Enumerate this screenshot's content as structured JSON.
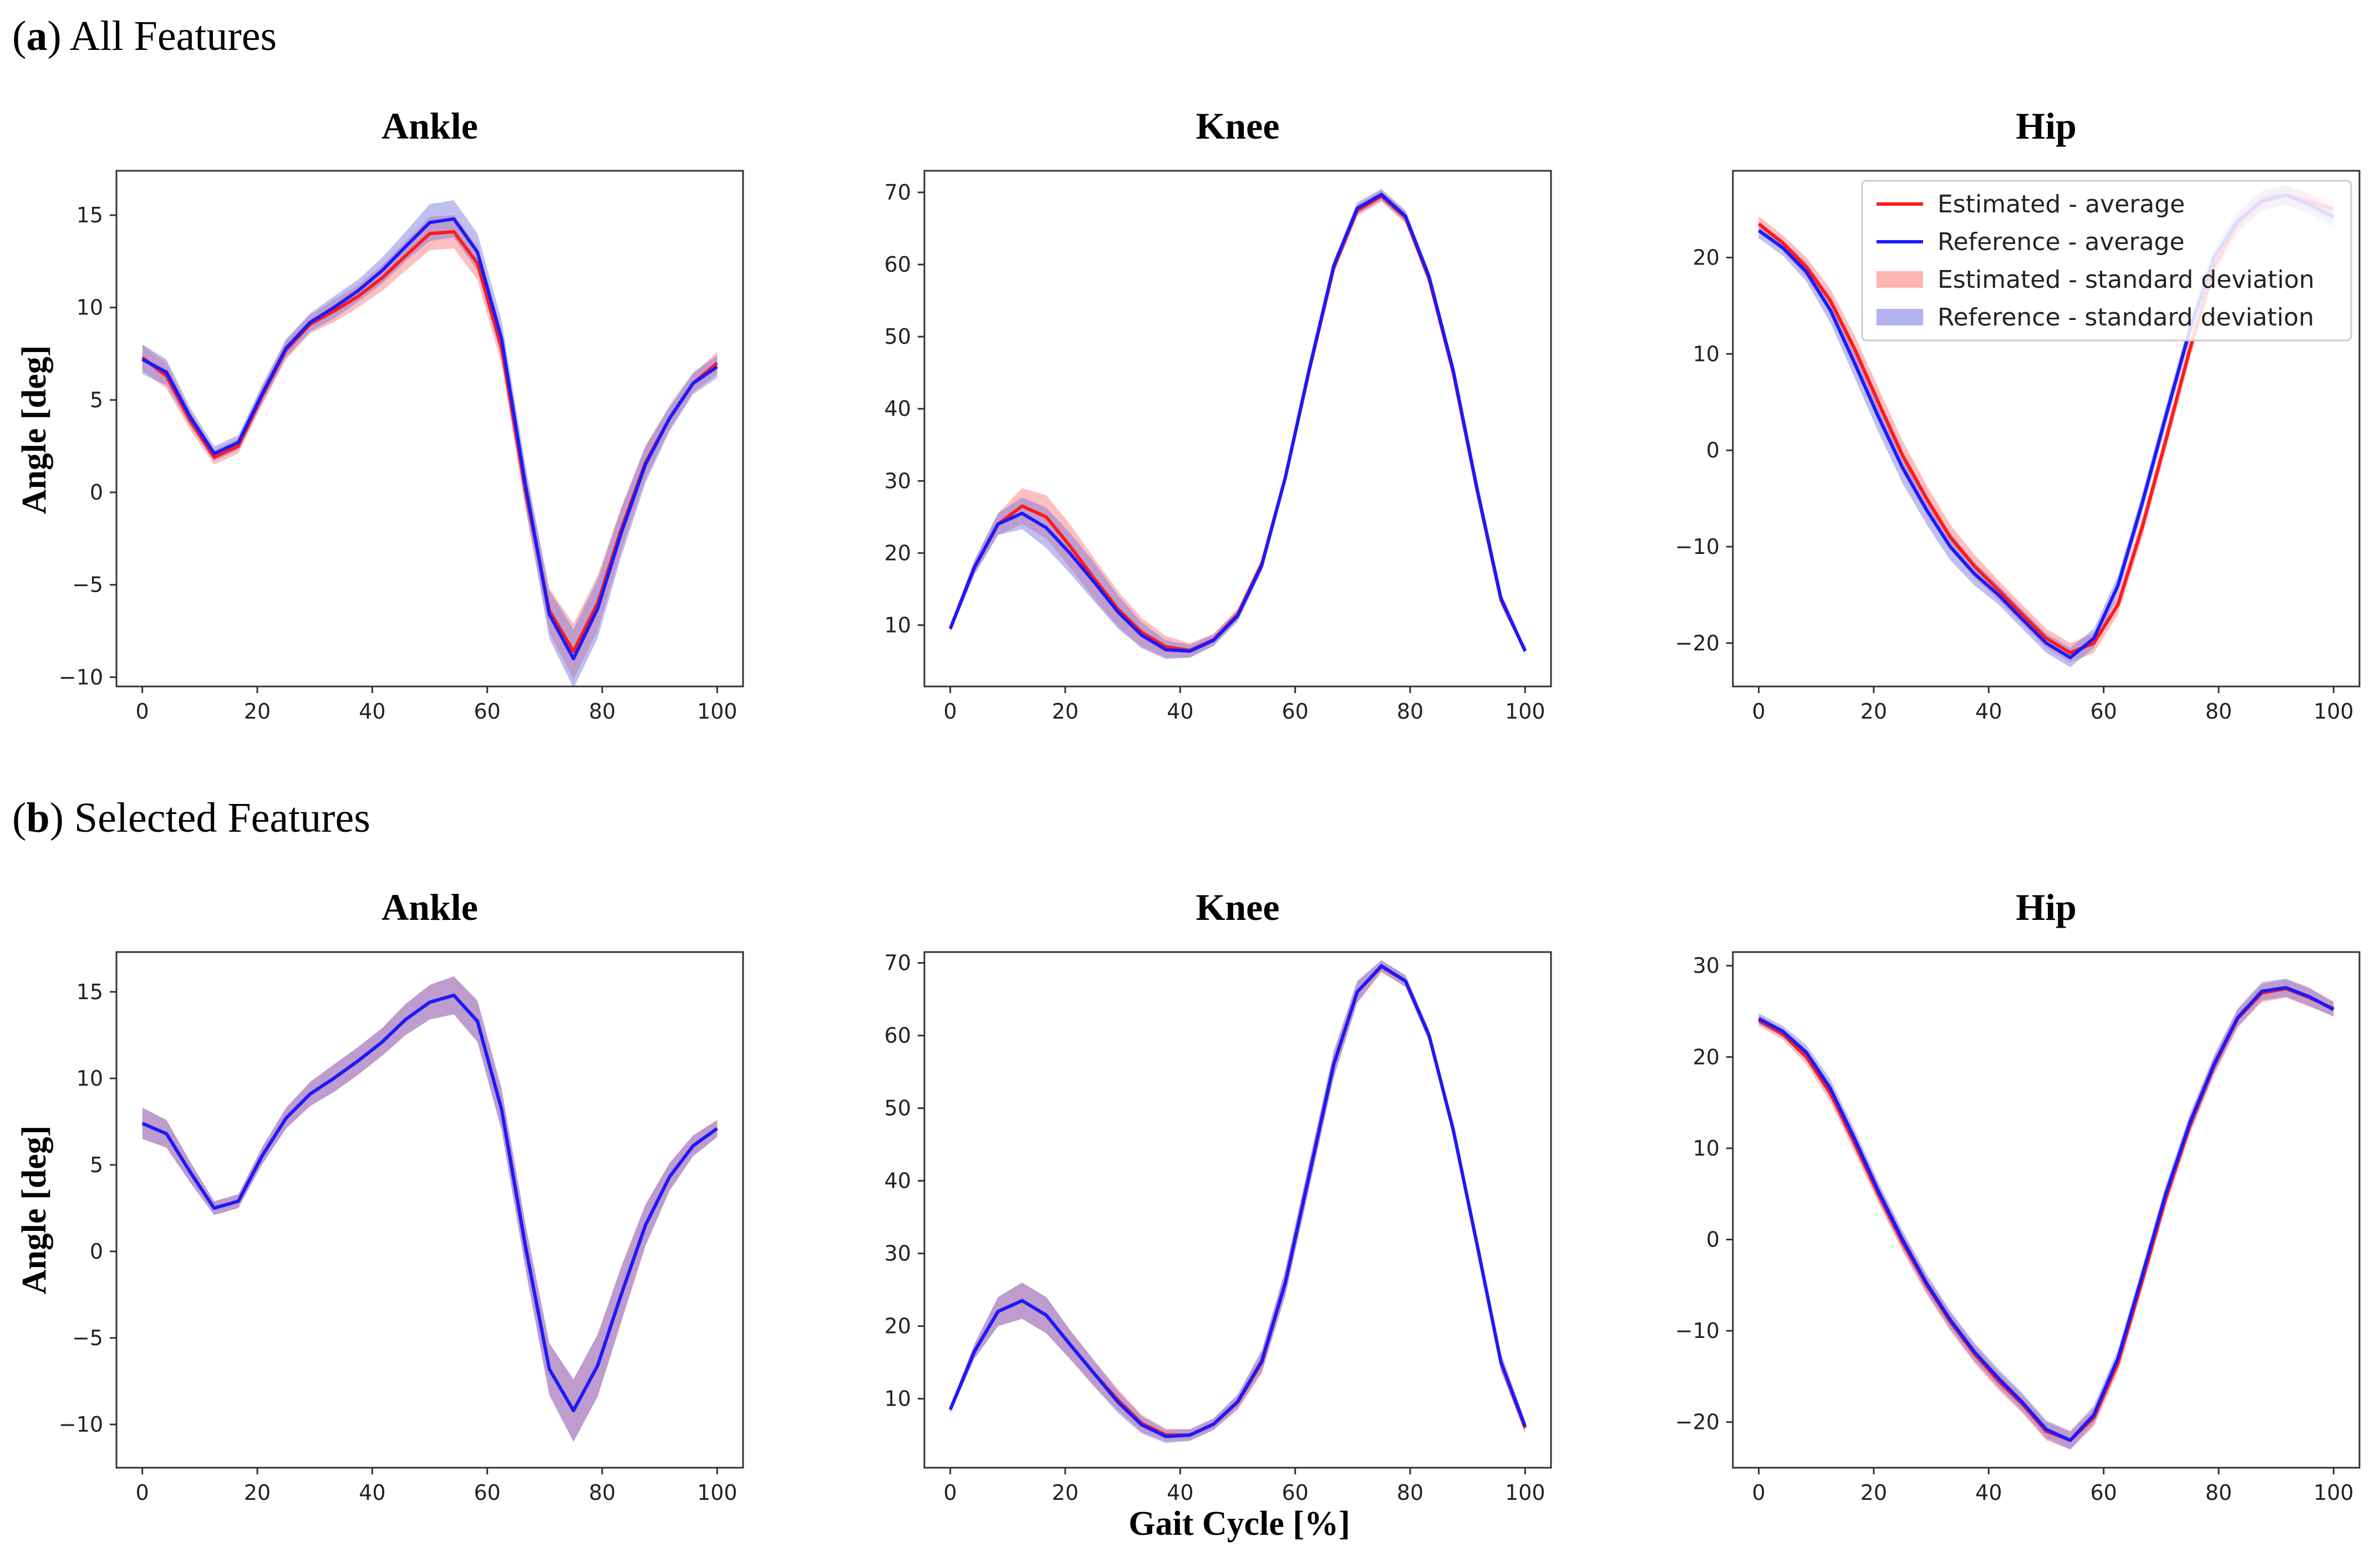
{
  "figure": {
    "section_a": {
      "letter": "a",
      "title": "All Features"
    },
    "section_b": {
      "letter": "b",
      "title": "Selected Features"
    },
    "xlabel": "Gait Cycle [%]",
    "ylabel": "Angle [deg]"
  },
  "legend": [
    {
      "label": "Estimated - average",
      "kind": "line",
      "color": "#ff1a1a"
    },
    {
      "label": "Reference - average",
      "kind": "line",
      "color": "#1a1aff"
    },
    {
      "label": "Estimated - standard deviation",
      "kind": "band",
      "color": "#ffb3b3"
    },
    {
      "label": "Reference - standard deviation",
      "kind": "band",
      "color": "#b3b3f0"
    }
  ],
  "colors": {
    "estimated_line": "#ff1a1a",
    "reference_line": "#1a1aff",
    "estimated_band": "#ff7070",
    "reference_band": "#7070e0",
    "axes": "#333333"
  },
  "chart_data": [
    {
      "id": "a-ankle",
      "section": "a",
      "type": "line",
      "title": "Ankle",
      "xlabel": "",
      "ylabel": "Angle [deg]",
      "xlim": [
        -4.5,
        104.5
      ],
      "ylim": [
        -10.5,
        17.4
      ],
      "xticks": [
        0,
        20,
        40,
        60,
        80,
        100
      ],
      "yticks": [
        -10,
        -5,
        0,
        5,
        10,
        15
      ],
      "x": [
        0,
        4.2,
        8.3,
        12.5,
        16.7,
        20.8,
        25,
        29.2,
        33.3,
        37.5,
        41.7,
        45.8,
        50,
        54.2,
        58.3,
        62.5,
        66.7,
        70.8,
        75,
        79.2,
        83.3,
        87.5,
        91.7,
        95.8,
        100
      ],
      "series": [
        {
          "name": "Estimated - average",
          "values": [
            7.3,
            6.3,
            3.9,
            1.9,
            2.5,
            5.2,
            7.7,
            9.1,
            9.8,
            10.6,
            11.6,
            12.8,
            14.0,
            14.1,
            12.4,
            7.8,
            0.0,
            -6.4,
            -8.6,
            -6.0,
            -2.0,
            1.6,
            4.0,
            5.9,
            7.0
          ],
          "sd": [
            0.7,
            0.7,
            0.5,
            0.4,
            0.4,
            0.5,
            0.5,
            0.5,
            0.6,
            0.6,
            0.7,
            0.8,
            0.9,
            0.9,
            0.9,
            0.9,
            1.0,
            1.2,
            1.5,
            1.5,
            1.2,
            0.9,
            0.6,
            0.5,
            0.6
          ]
        },
        {
          "name": "Reference - average",
          "values": [
            7.2,
            6.5,
            4.1,
            2.1,
            2.7,
            5.3,
            7.8,
            9.2,
            10.0,
            10.9,
            12.0,
            13.3,
            14.6,
            14.8,
            13.0,
            8.3,
            0.3,
            -6.6,
            -9.0,
            -6.3,
            -2.2,
            1.5,
            4.0,
            5.9,
            6.8
          ],
          "sd": [
            0.8,
            0.7,
            0.5,
            0.4,
            0.4,
            0.5,
            0.5,
            0.5,
            0.6,
            0.6,
            0.7,
            0.8,
            1.0,
            1.0,
            1.0,
            1.0,
            1.1,
            1.3,
            1.6,
            1.6,
            1.3,
            1.0,
            0.7,
            0.6,
            0.6
          ]
        }
      ]
    },
    {
      "id": "a-knee",
      "section": "a",
      "type": "line",
      "title": "Knee",
      "xlabel": "",
      "ylabel": "",
      "xlim": [
        -4.5,
        104.5
      ],
      "ylim": [
        1.5,
        73
      ],
      "xticks": [
        0,
        20,
        40,
        60,
        80,
        100
      ],
      "yticks": [
        10,
        20,
        30,
        40,
        50,
        60,
        70
      ],
      "x": [
        0,
        4.2,
        8.3,
        12.5,
        16.7,
        20.8,
        25,
        29.2,
        33.3,
        37.5,
        41.7,
        45.8,
        50,
        54.2,
        58.3,
        62.5,
        66.7,
        70.8,
        75,
        79.2,
        83.3,
        87.5,
        91.7,
        95.8,
        100
      ],
      "series": [
        {
          "name": "Estimated - average",
          "values": [
            9.5,
            18.0,
            24.0,
            26.5,
            25.0,
            21.0,
            16.5,
            12.2,
            9.0,
            7.0,
            6.5,
            8.0,
            11.5,
            18.5,
            30.5,
            45.5,
            59.5,
            67.5,
            69.5,
            66.5,
            58.0,
            45.0,
            28.5,
            13.5,
            6.5
          ],
          "sd": [
            0.5,
            1.0,
            1.5,
            2.5,
            3.0,
            3.0,
            2.8,
            2.5,
            2.0,
            1.5,
            1.0,
            0.8,
            0.8,
            0.8,
            0.8,
            0.8,
            0.8,
            0.8,
            0.8,
            0.8,
            0.8,
            0.8,
            0.8,
            0.8,
            0.5
          ]
        },
        {
          "name": "Reference - average",
          "values": [
            9.5,
            18.0,
            24.0,
            25.5,
            23.5,
            20.0,
            16.0,
            11.8,
            8.6,
            6.6,
            6.4,
            7.9,
            11.3,
            18.3,
            30.5,
            45.7,
            59.8,
            67.8,
            69.7,
            66.7,
            58.3,
            45.3,
            28.7,
            13.7,
            6.4
          ],
          "sd": [
            0.5,
            1.0,
            1.5,
            2.2,
            2.8,
            2.8,
            2.7,
            2.3,
            1.8,
            1.3,
            0.9,
            0.8,
            0.8,
            0.8,
            0.8,
            0.8,
            0.8,
            0.8,
            0.8,
            0.8,
            0.8,
            0.8,
            0.8,
            0.8,
            0.5
          ]
        }
      ]
    },
    {
      "id": "a-hip",
      "section": "a",
      "type": "line",
      "title": "Hip",
      "xlabel": "",
      "ylabel": "",
      "xlim": [
        -4.5,
        104.5
      ],
      "ylim": [
        -24.5,
        29
      ],
      "xticks": [
        0,
        20,
        40,
        60,
        80,
        100
      ],
      "yticks": [
        -20,
        -10,
        0,
        10,
        20
      ],
      "legend_position": "top-right",
      "x": [
        0,
        4.2,
        8.3,
        12.5,
        16.7,
        20.8,
        25,
        29.2,
        33.3,
        37.5,
        41.7,
        45.8,
        50,
        54.2,
        58.3,
        62.5,
        66.7,
        70.8,
        75,
        79.2,
        83.3,
        87.5,
        91.7,
        95.8,
        100
      ],
      "series": [
        {
          "name": "Estimated - average",
          "values": [
            23.5,
            21.5,
            19.0,
            15.5,
            10.5,
            5.0,
            -0.5,
            -5.0,
            -9.0,
            -12.0,
            -14.5,
            -17.0,
            -19.5,
            -21.0,
            -20.0,
            -16.0,
            -8.0,
            1.0,
            10.5,
            19.0,
            23.5,
            26.0,
            26.5,
            25.8,
            25.0
          ],
          "sd": [
            0.8,
            0.8,
            1.0,
            1.2,
            1.4,
            1.5,
            1.5,
            1.4,
            1.3,
            1.2,
            1.0,
            1.0,
            1.0,
            1.0,
            1.0,
            1.0,
            1.0,
            1.0,
            1.0,
            1.0,
            1.0,
            1.0,
            1.0,
            1.0,
            1.0
          ]
        },
        {
          "name": "Reference - average",
          "values": [
            22.8,
            21.0,
            18.5,
            14.5,
            9.0,
            3.5,
            -1.8,
            -6.2,
            -10.0,
            -12.8,
            -15.0,
            -17.5,
            -20.0,
            -21.5,
            -19.5,
            -14.0,
            -5.5,
            3.5,
            12.5,
            20.0,
            23.8,
            25.8,
            26.5,
            25.5,
            24.2
          ],
          "sd": [
            0.8,
            0.8,
            1.0,
            1.3,
            1.5,
            1.6,
            1.6,
            1.5,
            1.4,
            1.2,
            1.0,
            1.0,
            1.0,
            1.0,
            1.0,
            1.0,
            1.0,
            1.0,
            1.0,
            1.0,
            1.0,
            1.0,
            1.0,
            1.0,
            1.0
          ]
        }
      ]
    },
    {
      "id": "b-ankle",
      "section": "b",
      "type": "line",
      "title": "Ankle",
      "xlabel": "",
      "ylabel": "Angle [deg]",
      "xlim": [
        -4.5,
        104.5
      ],
      "ylim": [
        -12.5,
        17.3
      ],
      "xticks": [
        0,
        20,
        40,
        60,
        80,
        100
      ],
      "yticks": [
        -10,
        -5,
        0,
        5,
        10,
        15
      ],
      "x": [
        0,
        4.2,
        8.3,
        12.5,
        16.7,
        20.8,
        25,
        29.2,
        33.3,
        37.5,
        41.7,
        45.8,
        50,
        54.2,
        58.3,
        62.5,
        66.7,
        70.8,
        75,
        79.2,
        83.3,
        87.5,
        91.7,
        95.8,
        100
      ],
      "series": [
        {
          "name": "Estimated - average",
          "values": [
            7.4,
            6.8,
            4.6,
            2.5,
            2.9,
            5.5,
            7.7,
            9.1,
            10.0,
            11.0,
            12.1,
            13.4,
            14.4,
            14.8,
            13.3,
            8.2,
            0.2,
            -6.8,
            -9.2,
            -6.6,
            -2.5,
            1.5,
            4.3,
            6.1,
            7.1
          ],
          "sd": [
            0.9,
            0.8,
            0.6,
            0.4,
            0.4,
            0.5,
            0.6,
            0.7,
            0.8,
            0.8,
            0.8,
            0.9,
            1.0,
            1.1,
            1.2,
            1.2,
            1.3,
            1.5,
            1.8,
            1.8,
            1.6,
            1.2,
            0.8,
            0.6,
            0.5
          ]
        },
        {
          "name": "Reference - average",
          "values": [
            7.4,
            6.8,
            4.6,
            2.5,
            2.9,
            5.5,
            7.7,
            9.1,
            10.0,
            11.0,
            12.1,
            13.4,
            14.4,
            14.8,
            13.3,
            8.2,
            0.2,
            -6.8,
            -9.2,
            -6.6,
            -2.5,
            1.5,
            4.3,
            6.1,
            7.1
          ],
          "sd": [
            0.9,
            0.8,
            0.6,
            0.4,
            0.4,
            0.5,
            0.6,
            0.7,
            0.8,
            0.8,
            0.8,
            0.9,
            1.0,
            1.1,
            1.2,
            1.2,
            1.3,
            1.5,
            1.8,
            1.8,
            1.6,
            1.2,
            0.8,
            0.6,
            0.5
          ]
        }
      ]
    },
    {
      "id": "b-knee",
      "section": "b",
      "type": "line",
      "title": "Knee",
      "xlabel": "Gait Cycle [%]",
      "ylabel": "",
      "xlim": [
        -4.5,
        104.5
      ],
      "ylim": [
        0.5,
        71.5
      ],
      "xticks": [
        0,
        20,
        40,
        60,
        80,
        100
      ],
      "yticks": [
        10,
        20,
        30,
        40,
        50,
        60,
        70
      ],
      "x": [
        0,
        4.2,
        8.3,
        12.5,
        16.7,
        20.8,
        25,
        29.2,
        33.3,
        37.5,
        41.7,
        45.8,
        50,
        54.2,
        58.3,
        62.5,
        66.7,
        70.8,
        75,
        79.2,
        83.3,
        87.5,
        91.7,
        95.8,
        100
      ],
      "series": [
        {
          "name": "Estimated - average",
          "values": [
            8.5,
            16.5,
            22.0,
            23.5,
            21.5,
            17.5,
            13.5,
            9.8,
            6.6,
            5.0,
            5.0,
            6.5,
            9.5,
            15.0,
            26.0,
            41.0,
            56.0,
            66.0,
            69.5,
            67.5,
            60.0,
            47.0,
            31.0,
            15.0,
            6.0
          ],
          "sd": [
            0.5,
            1.0,
            2.0,
            2.5,
            2.5,
            2.0,
            1.8,
            1.5,
            1.2,
            0.9,
            0.8,
            0.8,
            1.0,
            1.5,
            1.8,
            1.8,
            1.8,
            1.5,
            0.8,
            0.8,
            0.8,
            1.0,
            1.2,
            1.2,
            0.8
          ]
        },
        {
          "name": "Reference - average",
          "values": [
            8.5,
            16.5,
            22.0,
            23.5,
            21.5,
            17.5,
            13.5,
            9.5,
            6.4,
            4.8,
            5.0,
            6.5,
            9.6,
            15.2,
            26.0,
            41.0,
            56.0,
            66.0,
            69.6,
            67.5,
            60.0,
            47.0,
            31.0,
            15.0,
            6.2
          ],
          "sd": [
            0.5,
            1.0,
            2.0,
            2.5,
            2.5,
            2.0,
            1.8,
            1.5,
            1.2,
            0.9,
            0.8,
            0.8,
            1.0,
            1.5,
            1.8,
            1.8,
            1.8,
            1.5,
            0.8,
            0.8,
            0.8,
            1.0,
            1.2,
            1.2,
            0.8
          ]
        }
      ]
    },
    {
      "id": "b-hip",
      "section": "b",
      "type": "line",
      "title": "Hip",
      "xlabel": "",
      "ylabel": "",
      "xlim": [
        -4.5,
        104.5
      ],
      "ylim": [
        -25,
        31.5
      ],
      "xticks": [
        0,
        20,
        40,
        60,
        80,
        100
      ],
      "yticks": [
        -20,
        -10,
        0,
        10,
        20,
        30
      ],
      "x": [
        0,
        4.2,
        8.3,
        12.5,
        16.7,
        20.8,
        25,
        29.2,
        33.3,
        37.5,
        41.7,
        45.8,
        50,
        54.2,
        58.3,
        62.5,
        66.7,
        70.8,
        75,
        79.2,
        83.3,
        87.5,
        91.7,
        95.8,
        100
      ],
      "series": [
        {
          "name": "Estimated - average",
          "values": [
            24.0,
            22.5,
            20.0,
            16.0,
            10.5,
            5.0,
            -0.3,
            -5.0,
            -9.0,
            -12.5,
            -15.5,
            -18.0,
            -21.0,
            -22.0,
            -19.5,
            -13.5,
            -4.5,
            4.5,
            12.5,
            19.0,
            24.2,
            27.0,
            27.5,
            26.5,
            25.3
          ],
          "sd": [
            0.6,
            0.6,
            0.8,
            1.0,
            1.0,
            1.0,
            1.0,
            1.0,
            1.0,
            1.0,
            1.0,
            1.0,
            1.0,
            1.0,
            1.0,
            1.0,
            1.0,
            1.0,
            1.0,
            1.0,
            1.0,
            1.0,
            1.0,
            1.0,
            0.8
          ]
        },
        {
          "name": "Reference - average",
          "values": [
            24.2,
            22.8,
            20.5,
            16.5,
            11.0,
            5.3,
            0.0,
            -4.8,
            -8.8,
            -12.3,
            -15.2,
            -17.8,
            -20.8,
            -22.0,
            -19.2,
            -13.0,
            -4.0,
            5.0,
            12.8,
            19.2,
            24.3,
            27.2,
            27.6,
            26.6,
            25.2
          ],
          "sd": [
            0.6,
            0.6,
            0.8,
            1.0,
            1.0,
            1.0,
            1.0,
            1.0,
            1.0,
            1.0,
            1.0,
            1.0,
            1.0,
            1.0,
            1.0,
            1.0,
            1.0,
            1.0,
            1.0,
            1.0,
            1.0,
            1.0,
            1.0,
            1.0,
            0.8
          ]
        }
      ]
    }
  ]
}
